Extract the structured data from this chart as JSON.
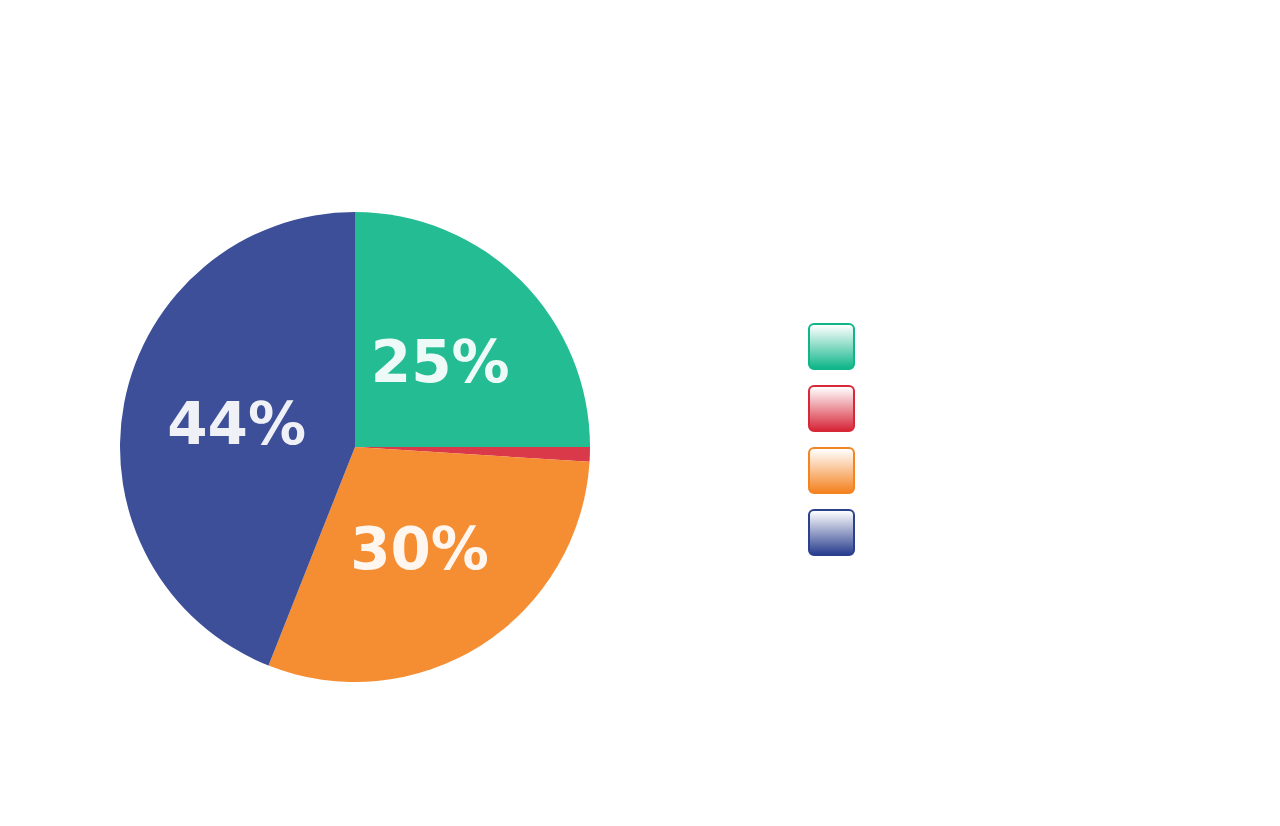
{
  "chart_data": {
    "type": "pie",
    "categories": [
      null,
      null,
      null,
      null
    ],
    "values": [
      25,
      1,
      30,
      44
    ],
    "value_labels": [
      "25%",
      null,
      "30%",
      "44%"
    ],
    "colors": [
      "#10b68a",
      "#d7283a",
      "#f48322",
      "#2b408f"
    ]
  }
}
